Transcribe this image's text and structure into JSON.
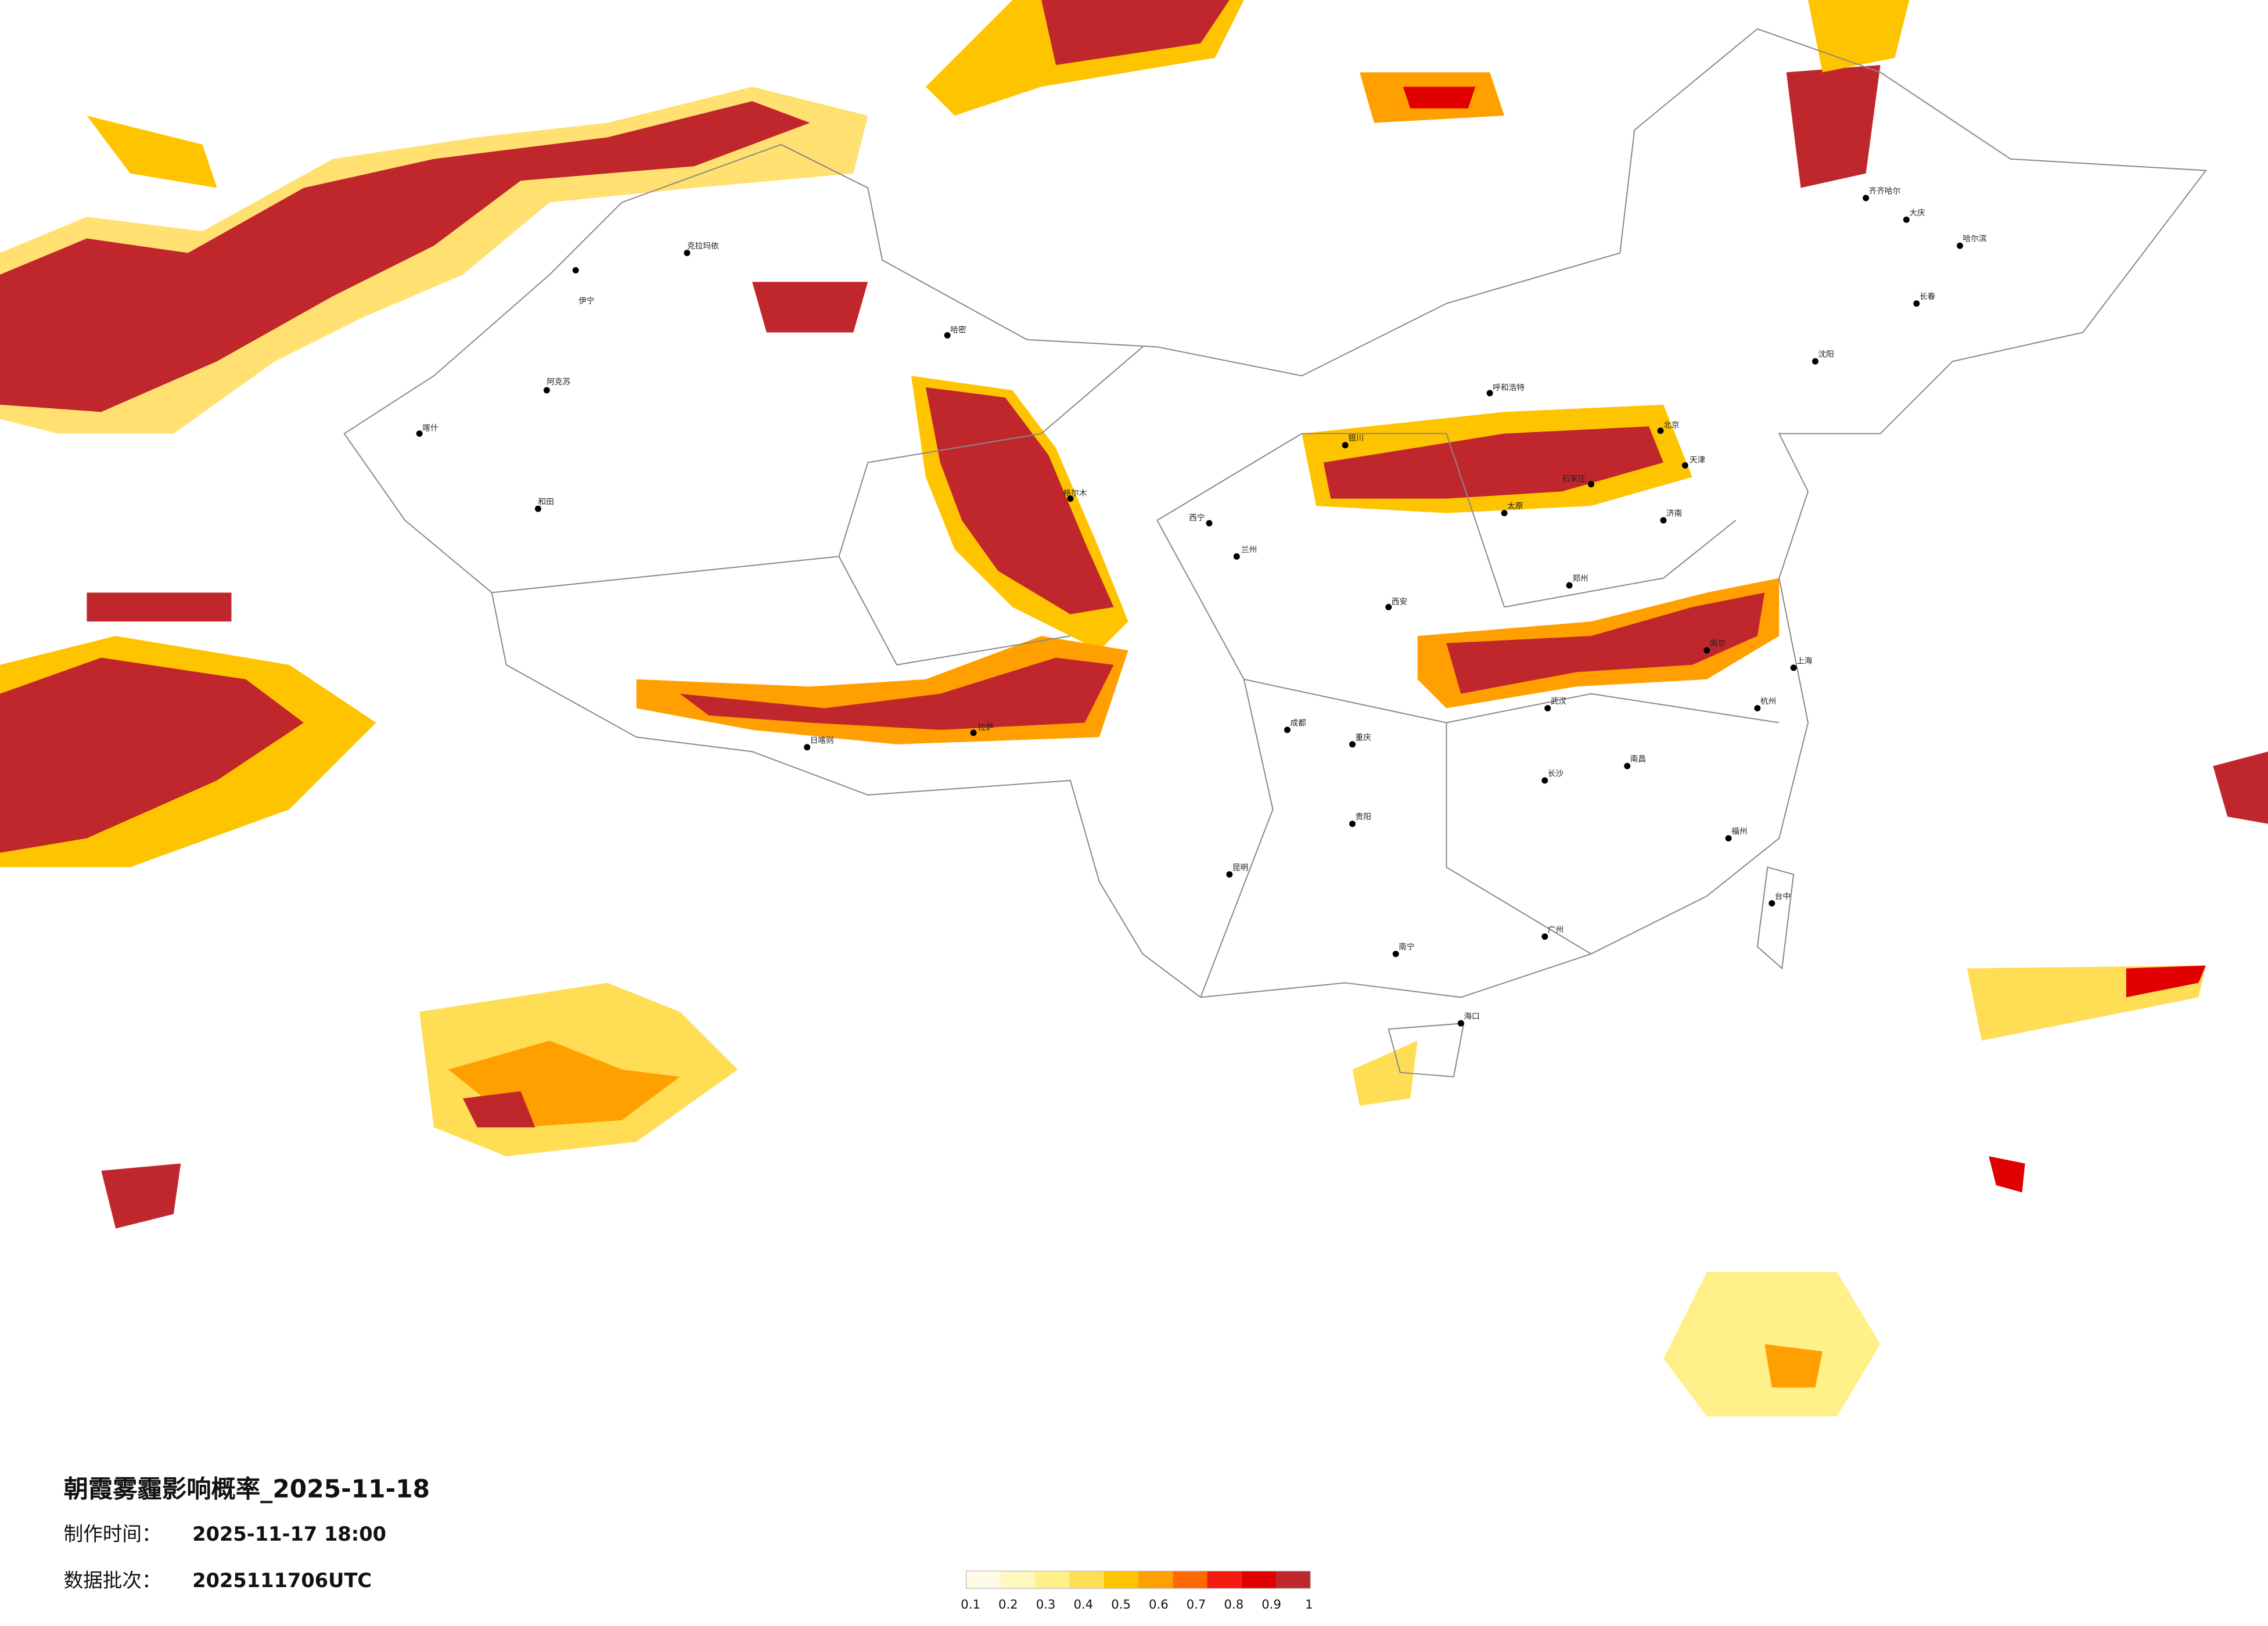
{
  "header": {
    "title": "朝霞雾霾影响概率_2025-11-18",
    "made_label": "制作时间：",
    "made_time": "2025-11-17 18:00",
    "batch_label": "数据批次：",
    "batch": "2025111706UTC"
  },
  "legend": {
    "colors": [
      "#fffbe6",
      "#fff7c0",
      "#fff08a",
      "#ffdd55",
      "#ffc400",
      "#ffa000",
      "#ff6a00",
      "#f51a10",
      "#e00000",
      "#c0272d"
    ],
    "labels": [
      0.1,
      0.2,
      0.3,
      0.4,
      0.5,
      0.6,
      0.7,
      0.8,
      0.9,
      1
    ]
  },
  "cities": [
    {
      "name": "伊宁"
    },
    {
      "name": "克拉玛依"
    },
    {
      "name": "哈密"
    },
    {
      "name": "阿克苏"
    },
    {
      "name": "和田"
    },
    {
      "name": "喀什"
    },
    {
      "name": "格尔木"
    },
    {
      "name": "拉萨"
    },
    {
      "name": "日喀则"
    },
    {
      "name": "西宁"
    },
    {
      "name": "兰州"
    },
    {
      "name": "银川"
    },
    {
      "name": "呼和浩特"
    },
    {
      "name": "北京"
    },
    {
      "name": "天津"
    },
    {
      "name": "石家庄"
    },
    {
      "name": "太原"
    },
    {
      "name": "济南"
    },
    {
      "name": "郑州"
    },
    {
      "name": "西安"
    },
    {
      "name": "成都"
    },
    {
      "name": "重庆"
    },
    {
      "name": "武汉"
    },
    {
      "name": "南京"
    },
    {
      "name": "上海"
    },
    {
      "name": "杭州"
    },
    {
      "name": "长沙"
    },
    {
      "name": "南昌"
    },
    {
      "name": "福州"
    },
    {
      "name": "广州"
    },
    {
      "name": "南宁"
    },
    {
      "name": "贵阳"
    },
    {
      "name": "昆明"
    },
    {
      "name": "海口"
    },
    {
      "name": "沈阳"
    },
    {
      "name": "长春"
    },
    {
      "name": "哈尔滨"
    },
    {
      "name": "齐齐哈尔"
    },
    {
      "name": "大庆"
    },
    {
      "name": "台中"
    }
  ]
}
